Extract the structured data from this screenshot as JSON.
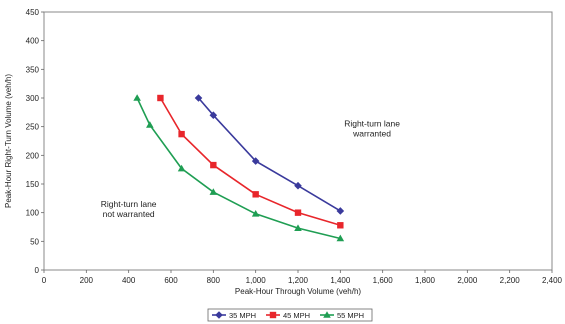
{
  "chart_data": {
    "type": "line",
    "title": "",
    "xlabel": "Peak-Hour Through Volume (veh/h)",
    "ylabel": "Peak-Hour Right-Turn Volume (veh/h)",
    "xlim": [
      0,
      2400
    ],
    "ylim": [
      0,
      450
    ],
    "x_ticks": [
      "0",
      "200",
      "400",
      "600",
      "800",
      "1,000",
      "1,200",
      "1,400",
      "1,600",
      "1,800",
      "2,000",
      "2,200",
      "2,400"
    ],
    "y_ticks": [
      "0",
      "50",
      "100",
      "150",
      "200",
      "250",
      "300",
      "350",
      "400",
      "450"
    ],
    "grid": false,
    "legend_position": "bottom",
    "series": [
      {
        "name": "35 MPH",
        "color": "#3a3a9c",
        "marker": "diamond",
        "x": [
          730,
          800,
          1000,
          1200,
          1400
        ],
        "y": [
          300,
          270,
          190,
          147,
          103
        ]
      },
      {
        "name": "45 MPH",
        "color": "#e8262b",
        "marker": "square",
        "x": [
          550,
          650,
          800,
          1000,
          1200,
          1400
        ],
        "y": [
          300,
          237,
          183,
          132,
          100,
          78
        ]
      },
      {
        "name": "55 MPH",
        "color": "#1f9e53",
        "marker": "triangle",
        "x": [
          440,
          500,
          650,
          800,
          1000,
          1200,
          1400
        ],
        "y": [
          300,
          253,
          177,
          136,
          98,
          73,
          55
        ]
      }
    ],
    "annotations": [
      {
        "lines": [
          "Right-turn lane",
          "warranted"
        ],
        "x": 1550,
        "y": 250
      },
      {
        "lines": [
          "Right-turn lane",
          "not warranted"
        ],
        "x": 400,
        "y": 110
      }
    ]
  }
}
